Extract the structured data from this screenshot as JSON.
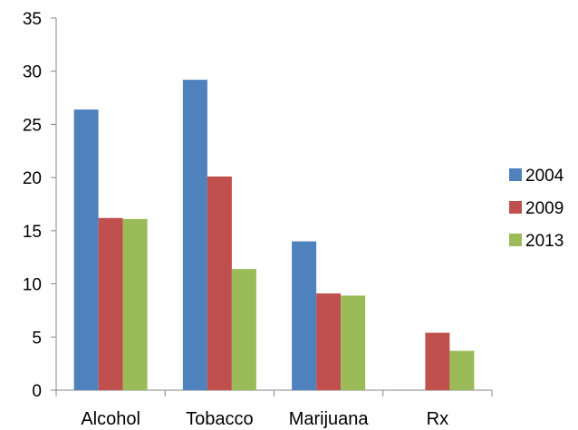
{
  "chart_data": {
    "type": "bar",
    "title": "",
    "xlabel": "",
    "ylabel": "",
    "categories": [
      "Alcohol",
      "Tobacco",
      "Marijuana",
      "Rx"
    ],
    "series": [
      {
        "name": "2004",
        "color": "#4F81BD",
        "values": [
          26.4,
          29.2,
          14.0,
          0
        ]
      },
      {
        "name": "2009",
        "color": "#C0504D",
        "values": [
          16.2,
          20.1,
          9.1,
          5.4
        ]
      },
      {
        "name": "2013",
        "color": "#9BBB59",
        "values": [
          16.1,
          11.4,
          8.9,
          3.7
        ]
      }
    ],
    "ylim": [
      0,
      35
    ],
    "yticks": [
      0,
      5,
      10,
      15,
      20,
      25,
      30,
      35
    ],
    "grid": false,
    "legend": "right"
  }
}
